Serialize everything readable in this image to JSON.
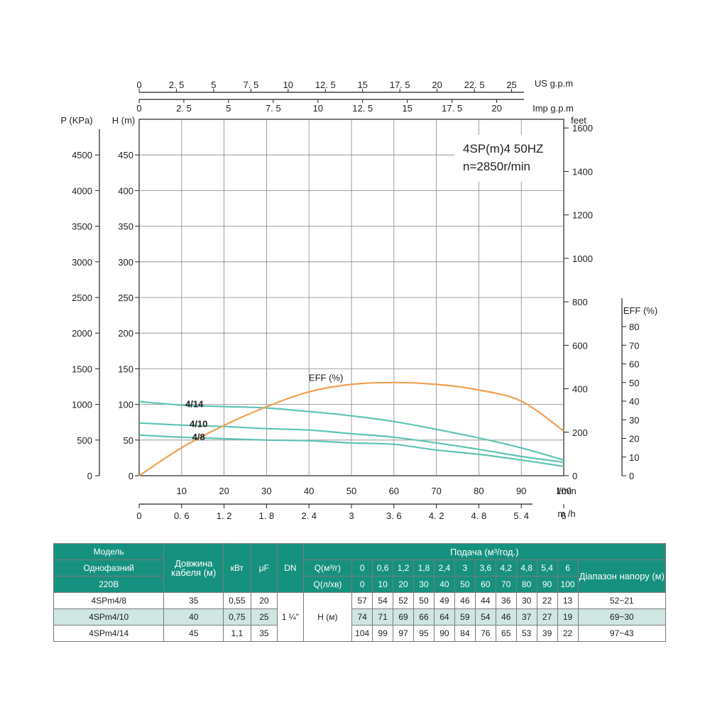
{
  "chart_data": {
    "type": "line",
    "title": "4SP(m)4  50HZ",
    "subtitle": "n=2850r/min",
    "x_axis": {
      "unit": "l/min",
      "ticks": [
        "10",
        "20",
        "30",
        "40",
        "50",
        "60",
        "70",
        "80",
        "90",
        "100"
      ],
      "range": [
        0,
        100
      ]
    },
    "x_axis_m3h": {
      "unit": "m /h",
      "ticks": [
        "0",
        "0. 6",
        "1. 2",
        "1. 8",
        "2. 4",
        "3",
        "3. 6",
        "4. 2",
        "4. 8",
        "5. 4",
        "6"
      ]
    },
    "x_axis_us": {
      "unit": "US g.p.m",
      "ticks": [
        "0",
        "2. 5",
        "5",
        "7. 5",
        "10",
        "12. 5",
        "15",
        "17. 5",
        "20",
        "22. 5",
        "25"
      ]
    },
    "x_axis_imp": {
      "unit": "Imp g.p.m",
      "ticks": [
        "0",
        "2. 5",
        "5",
        "7. 5",
        "10",
        "12. 5",
        "15",
        "17. 5",
        "20"
      ]
    },
    "y_axis_head": {
      "label": "H (m)",
      "ticks": [
        "0",
        "50",
        "100",
        "150",
        "200",
        "250",
        "300",
        "350",
        "400",
        "450"
      ],
      "range": [
        0,
        500
      ]
    },
    "y_axis_pressure": {
      "label": "P (KPa)",
      "ticks": [
        "0",
        "500",
        "1000",
        "1500",
        "2000",
        "2500",
        "3000",
        "3500",
        "4000",
        "4500"
      ]
    },
    "y_axis_feet": {
      "label": "feet",
      "ticks": [
        "0",
        "200",
        "400",
        "600",
        "800",
        "1000",
        "1200",
        "1400",
        "1600"
      ]
    },
    "y_axis_eff": {
      "label": "EFF (%)",
      "ticks": [
        "0",
        "10",
        "20",
        "30",
        "40",
        "50",
        "60",
        "70",
        "80"
      ],
      "range": [
        0,
        80
      ]
    },
    "series": [
      {
        "name": "4/14",
        "color": "#5ec4b3",
        "x": [
          0,
          10,
          20,
          30,
          40,
          50,
          60,
          70,
          80,
          90,
          100
        ],
        "values": [
          104,
          99,
          97,
          95,
          90,
          84,
          76,
          65,
          53,
          39,
          22
        ]
      },
      {
        "name": "4/10",
        "color": "#5ec4b3",
        "x": [
          0,
          10,
          20,
          30,
          40,
          50,
          60,
          70,
          80,
          90,
          100
        ],
        "values": [
          74,
          71,
          69,
          66,
          64,
          59,
          54,
          46,
          37,
          27,
          19
        ]
      },
      {
        "name": "4/8",
        "color": "#5ec4b3",
        "x": [
          0,
          10,
          20,
          30,
          40,
          50,
          60,
          70,
          80,
          90,
          100
        ],
        "values": [
          57,
          54,
          52,
          50,
          49,
          46,
          44,
          36,
          30,
          22,
          13
        ]
      },
      {
        "name": "EFF (%)",
        "color": "#f0a050",
        "axis": "eff",
        "x": [
          0,
          10,
          20,
          30,
          40,
          50,
          60,
          70,
          80,
          90,
          100
        ],
        "values": [
          0,
          15,
          27,
          37,
          45,
          49,
          50,
          49,
          46,
          40,
          24
        ]
      }
    ]
  },
  "table": {
    "header": {
      "model": "Модель",
      "single_phase": "Однофазний",
      "voltage": "220В",
      "cable": "Довжина кабеля (м)",
      "kw": "кВт",
      "uf": "μF",
      "dn": "DN",
      "flow_title": "Подача (м³/год.)",
      "q_m3": "Q(м³/г)",
      "q_lmin": "Q(л/хв)",
      "range": "Діапазон напору (м)",
      "q_m3_values": [
        "0",
        "0,6",
        "1,2",
        "1,8",
        "2,4",
        "3",
        "3,6",
        "4,2",
        "4,8",
        "5,4",
        "6"
      ],
      "q_l_values": [
        "0",
        "10",
        "20",
        "30",
        "40",
        "50",
        "60",
        "70",
        "80",
        "90",
        "100"
      ]
    },
    "dn_value": "1 ¼\"",
    "h_label": "Н (м)",
    "rows": [
      {
        "model": "4SPm4/8",
        "cable": "35",
        "kw": "0,55",
        "uf": "20",
        "h": [
          "57",
          "54",
          "52",
          "50",
          "49",
          "46",
          "44",
          "36",
          "30",
          "22",
          "13"
        ],
        "range": "52~21"
      },
      {
        "model": "4SPm4/10",
        "cable": "40",
        "kw": "0,75",
        "uf": "25",
        "h": [
          "74",
          "71",
          "69",
          "66",
          "64",
          "59",
          "54",
          "46",
          "37",
          "27",
          "19"
        ],
        "range": "69~30"
      },
      {
        "model": "4SPm4/14",
        "cable": "45",
        "kw": "1,1",
        "uf": "35",
        "h": [
          "104",
          "99",
          "97",
          "95",
          "90",
          "84",
          "76",
          "65",
          "53",
          "39",
          "22"
        ],
        "range": "97~43"
      }
    ]
  }
}
